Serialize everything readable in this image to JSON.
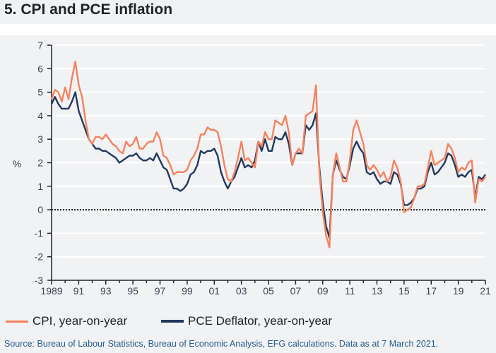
{
  "title": "5. CPI and PCE inflation",
  "source": "Source: Bureau of Labour Statistics, Bureau of Economic Analysis, EFG calculations. Data as at 7 March 2021.",
  "colors": {
    "cpi": "#f5825f",
    "pce": "#22385c",
    "background": "#f1f2f4",
    "grid": "#ffffff"
  },
  "chart_data": {
    "type": "line",
    "ylabel": "%",
    "ylim": [
      -3,
      7
    ],
    "yticks": [
      "7",
      "6",
      "5",
      "4",
      "3",
      "2",
      "1",
      "0",
      "-1",
      "-2",
      "-3"
    ],
    "xlim": [
      1989,
      2021
    ],
    "xticks": [
      "1989",
      "91",
      "93",
      "95",
      "97",
      "99",
      "01",
      "03",
      "05",
      "07",
      "09",
      "11",
      "13",
      "15",
      "17",
      "19",
      "21"
    ],
    "grid": true,
    "zero_line": "dotted",
    "legend": "bottom",
    "x": [
      "1989Q1",
      "1989Q2",
      "1989Q3",
      "1989Q4",
      "1990Q1",
      "1990Q2",
      "1990Q3",
      "1990Q4",
      "1991Q1",
      "1991Q2",
      "1991Q3",
      "1991Q4",
      "1992Q1",
      "1992Q2",
      "1992Q3",
      "1992Q4",
      "1993Q1",
      "1993Q2",
      "1993Q3",
      "1993Q4",
      "1994Q1",
      "1994Q2",
      "1994Q3",
      "1994Q4",
      "1995Q1",
      "1995Q2",
      "1995Q3",
      "1995Q4",
      "1996Q1",
      "1996Q2",
      "1996Q3",
      "1996Q4",
      "1997Q1",
      "1997Q2",
      "1997Q3",
      "1997Q4",
      "1998Q1",
      "1998Q2",
      "1998Q3",
      "1998Q4",
      "1999Q1",
      "1999Q2",
      "1999Q3",
      "1999Q4",
      "2000Q1",
      "2000Q2",
      "2000Q3",
      "2000Q4",
      "2001Q1",
      "2001Q2",
      "2001Q3",
      "2001Q4",
      "2002Q1",
      "2002Q2",
      "2002Q3",
      "2002Q4",
      "2003Q1",
      "2003Q2",
      "2003Q3",
      "2003Q4",
      "2004Q1",
      "2004Q2",
      "2004Q3",
      "2004Q4",
      "2005Q1",
      "2005Q2",
      "2005Q3",
      "2005Q4",
      "2006Q1",
      "2006Q2",
      "2006Q3",
      "2006Q4",
      "2007Q1",
      "2007Q2",
      "2007Q3",
      "2007Q4",
      "2008Q1",
      "2008Q2",
      "2008Q3",
      "2008Q4",
      "2009Q1",
      "2009Q2",
      "2009Q3",
      "2009Q4",
      "2010Q1",
      "2010Q2",
      "2010Q3",
      "2010Q4",
      "2011Q1",
      "2011Q2",
      "2011Q3",
      "2011Q4",
      "2012Q1",
      "2012Q2",
      "2012Q3",
      "2012Q4",
      "2013Q1",
      "2013Q2",
      "2013Q3",
      "2013Q4",
      "2014Q1",
      "2014Q2",
      "2014Q3",
      "2014Q4",
      "2015Q1",
      "2015Q2",
      "2015Q3",
      "2015Q4",
      "2016Q1",
      "2016Q2",
      "2016Q3",
      "2016Q4",
      "2017Q1",
      "2017Q2",
      "2017Q3",
      "2017Q4",
      "2018Q1",
      "2018Q2",
      "2018Q3",
      "2018Q4",
      "2019Q1",
      "2019Q2",
      "2019Q3",
      "2019Q4",
      "2020Q1",
      "2020Q2",
      "2020Q3",
      "2020Q4",
      "2021Q1"
    ],
    "series": [
      {
        "name": "CPI, year-on-year",
        "values": [
          4.7,
          5.1,
          5.0,
          4.6,
          5.2,
          4.7,
          5.6,
          6.3,
          5.3,
          4.8,
          3.8,
          3.0,
          2.8,
          3.1,
          3.1,
          3.0,
          3.2,
          3.0,
          2.8,
          2.7,
          2.5,
          2.4,
          2.9,
          2.7,
          2.8,
          3.1,
          2.6,
          2.6,
          2.8,
          2.9,
          2.9,
          3.3,
          3.0,
          2.3,
          2.2,
          1.9,
          1.5,
          1.6,
          1.6,
          1.6,
          1.7,
          2.1,
          2.3,
          2.6,
          3.2,
          3.2,
          3.5,
          3.4,
          3.4,
          3.3,
          2.7,
          1.9,
          1.3,
          1.2,
          1.6,
          2.2,
          2.9,
          2.1,
          2.2,
          2.0,
          1.8,
          2.9,
          2.7,
          3.3,
          3.0,
          3.0,
          3.8,
          3.7,
          3.6,
          4.0,
          3.3,
          1.9,
          2.4,
          2.6,
          2.4,
          4.0,
          4.1,
          4.2,
          5.3,
          1.6,
          -0.1,
          -1.1,
          -1.6,
          1.5,
          2.4,
          1.8,
          1.2,
          1.2,
          2.1,
          3.4,
          3.8,
          3.3,
          2.8,
          1.9,
          1.7,
          1.9,
          1.7,
          1.4,
          1.6,
          1.2,
          1.4,
          2.1,
          1.8,
          1.2,
          -0.1,
          0.0,
          0.1,
          0.5,
          1.0,
          1.0,
          1.1,
          1.8,
          2.5,
          1.9,
          2.0,
          2.1,
          2.2,
          2.8,
          2.6,
          2.2,
          1.6,
          1.8,
          1.7,
          2.0,
          2.1,
          0.3,
          1.3,
          1.2,
          1.4
        ]
      },
      {
        "name": "PCE Deflator, year-on-year",
        "values": [
          4.5,
          4.8,
          4.5,
          4.3,
          4.3,
          4.3,
          4.6,
          5.0,
          4.2,
          3.8,
          3.4,
          3.0,
          2.8,
          2.6,
          2.6,
          2.5,
          2.5,
          2.4,
          2.3,
          2.2,
          2.0,
          2.1,
          2.2,
          2.3,
          2.3,
          2.4,
          2.2,
          2.1,
          2.1,
          2.2,
          2.1,
          2.4,
          2.1,
          1.8,
          1.7,
          1.3,
          0.9,
          0.9,
          0.8,
          0.9,
          1.1,
          1.5,
          1.6,
          1.9,
          2.5,
          2.4,
          2.5,
          2.5,
          2.6,
          2.3,
          1.6,
          1.2,
          0.9,
          1.2,
          1.4,
          1.8,
          2.2,
          1.8,
          1.9,
          1.8,
          2.1,
          2.9,
          2.5,
          3.0,
          2.5,
          2.5,
          3.1,
          3.0,
          3.0,
          3.3,
          2.8,
          1.9,
          2.4,
          2.4,
          2.4,
          3.6,
          3.4,
          3.6,
          4.1,
          1.8,
          0.3,
          -0.7,
          -1.2,
          1.5,
          2.1,
          1.7,
          1.4,
          1.3,
          1.9,
          2.6,
          2.9,
          2.6,
          2.4,
          1.6,
          1.5,
          1.6,
          1.3,
          1.1,
          1.2,
          1.2,
          1.1,
          1.6,
          1.5,
          1.1,
          0.2,
          0.2,
          0.3,
          0.5,
          0.9,
          0.9,
          1.0,
          1.6,
          2.0,
          1.5,
          1.6,
          1.8,
          2.0,
          2.4,
          2.3,
          1.9,
          1.4,
          1.5,
          1.4,
          1.6,
          1.7,
          0.5,
          1.4,
          1.3,
          1.5
        ]
      }
    ]
  }
}
